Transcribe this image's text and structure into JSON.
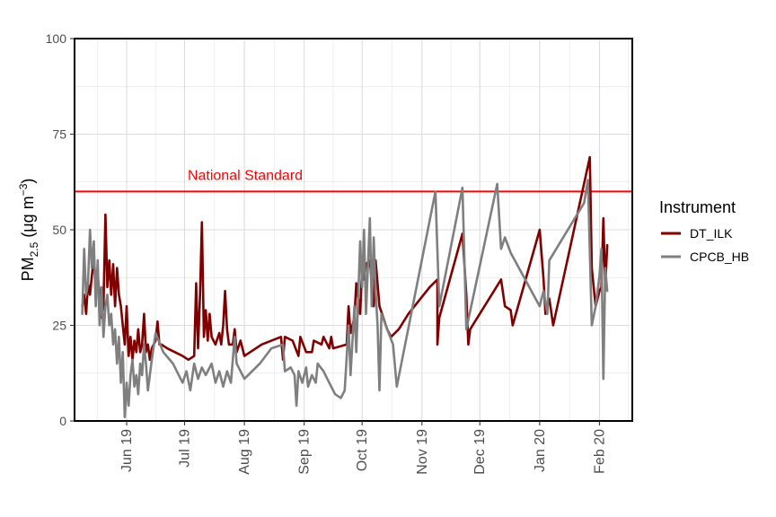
{
  "chart_data": {
    "type": "line",
    "ylabel_main": "PM",
    "ylabel_sub": "2.5",
    "ylabel_units_open": " (μg m",
    "ylabel_units_sup": "−3",
    "ylabel_units_close": ")",
    "ylim": [
      0,
      100
    ],
    "y_ticks": [
      0,
      25,
      50,
      75,
      100
    ],
    "x_range": [
      "2019-05-05",
      "2020-02-18"
    ],
    "x_ticks": [
      {
        "date": "2019-06-01",
        "label": "Jun 19"
      },
      {
        "date": "2019-07-01",
        "label": "Jul 19"
      },
      {
        "date": "2019-08-01",
        "label": "Aug 19"
      },
      {
        "date": "2019-09-01",
        "label": "Sep 19"
      },
      {
        "date": "2019-10-01",
        "label": "Oct 19"
      },
      {
        "date": "2019-11-01",
        "label": "Nov 19"
      },
      {
        "date": "2019-12-01",
        "label": "Dec 19"
      },
      {
        "date": "2020-01-01",
        "label": "Jan 20"
      },
      {
        "date": "2020-02-01",
        "label": "Feb 20"
      }
    ],
    "grid": true,
    "reference_line": {
      "value": 60,
      "label": "National Standard",
      "color": "#ff0000"
    },
    "legend": {
      "title": "Instrument",
      "position": "right"
    },
    "series": [
      {
        "name": "DT_ILK",
        "color": "#800000",
        "points": [
          [
            "2019-05-09",
            30
          ],
          [
            "2019-05-10",
            33
          ],
          [
            "2019-05-11",
            28
          ],
          [
            "2019-05-12",
            36
          ],
          [
            "2019-05-13",
            33
          ],
          [
            "2019-05-14",
            38
          ],
          [
            "2019-05-15",
            43
          ],
          [
            "2019-05-16",
            35
          ],
          [
            "2019-05-17",
            38
          ],
          [
            "2019-05-18",
            33
          ],
          [
            "2019-05-19",
            27
          ],
          [
            "2019-05-20",
            30
          ],
          [
            "2019-05-21",
            54
          ],
          [
            "2019-05-22",
            35
          ],
          [
            "2019-05-23",
            42
          ],
          [
            "2019-05-24",
            33
          ],
          [
            "2019-05-25",
            41
          ],
          [
            "2019-05-26",
            30
          ],
          [
            "2019-05-27",
            40
          ],
          [
            "2019-05-28",
            33
          ],
          [
            "2019-05-29",
            30
          ],
          [
            "2019-05-30",
            25
          ],
          [
            "2019-05-31",
            20
          ],
          [
            "2019-06-01",
            30
          ],
          [
            "2019-06-02",
            17
          ],
          [
            "2019-06-03",
            22
          ],
          [
            "2019-06-04",
            16
          ],
          [
            "2019-06-05",
            21
          ],
          [
            "2019-06-06",
            18
          ],
          [
            "2019-06-07",
            24
          ],
          [
            "2019-06-08",
            18
          ],
          [
            "2019-06-09",
            20
          ],
          [
            "2019-06-10",
            28
          ],
          [
            "2019-06-11",
            18
          ],
          [
            "2019-06-12",
            20
          ],
          [
            "2019-06-13",
            16
          ],
          [
            "2019-06-14",
            19
          ],
          [
            "2019-06-16",
            21
          ],
          [
            "2019-06-17",
            26
          ],
          [
            "2019-06-18",
            20
          ],
          [
            "2019-06-19",
            20
          ],
          [
            "2019-06-22",
            19
          ],
          [
            "2019-06-26",
            18
          ],
          [
            "2019-06-30",
            17
          ],
          [
            "2019-07-03",
            16
          ],
          [
            "2019-07-06",
            17
          ],
          [
            "2019-07-07",
            36
          ],
          [
            "2019-07-08",
            19
          ],
          [
            "2019-07-09",
            33
          ],
          [
            "2019-07-10",
            52
          ],
          [
            "2019-07-11",
            22
          ],
          [
            "2019-07-12",
            29
          ],
          [
            "2019-07-13",
            21
          ],
          [
            "2019-07-14",
            28
          ],
          [
            "2019-07-15",
            22
          ],
          [
            "2019-07-17",
            20
          ],
          [
            "2019-07-19",
            23
          ],
          [
            "2019-07-20",
            20
          ],
          [
            "2019-07-21",
            25
          ],
          [
            "2019-07-22",
            34
          ],
          [
            "2019-07-23",
            24
          ],
          [
            "2019-07-24",
            20
          ],
          [
            "2019-07-26",
            20
          ],
          [
            "2019-07-27",
            24
          ],
          [
            "2019-07-28",
            18
          ],
          [
            "2019-07-30",
            21
          ],
          [
            "2019-08-01",
            17
          ],
          [
            "2019-08-10",
            20
          ],
          [
            "2019-08-20",
            22
          ],
          [
            "2019-08-21",
            16
          ],
          [
            "2019-08-22",
            22
          ],
          [
            "2019-08-26",
            21
          ],
          [
            "2019-08-29",
            17
          ],
          [
            "2019-08-30",
            22
          ],
          [
            "2019-09-02",
            18
          ],
          [
            "2019-09-05",
            18
          ],
          [
            "2019-09-06",
            21
          ],
          [
            "2019-09-10",
            20
          ],
          [
            "2019-09-11",
            22
          ],
          [
            "2019-09-14",
            19
          ],
          [
            "2019-09-15",
            22
          ],
          [
            "2019-09-16",
            19
          ],
          [
            "2019-09-23",
            20
          ],
          [
            "2019-09-24",
            30
          ],
          [
            "2019-09-25",
            23
          ],
          [
            "2019-09-27",
            27
          ],
          [
            "2019-09-28",
            36
          ],
          [
            "2019-09-30",
            28
          ],
          [
            "2019-10-01",
            40
          ],
          [
            "2019-10-02",
            37
          ],
          [
            "2019-10-03",
            41
          ],
          [
            "2019-10-05",
            42
          ],
          [
            "2019-10-07",
            30
          ],
          [
            "2019-10-08",
            42
          ],
          [
            "2019-10-10",
            30
          ],
          [
            "2019-10-12",
            27
          ],
          [
            "2019-10-14",
            24
          ],
          [
            "2019-10-16",
            22
          ],
          [
            "2019-10-20",
            24
          ],
          [
            "2019-10-25",
            28
          ],
          [
            "2019-11-05",
            35
          ],
          [
            "2019-11-09",
            37
          ],
          [
            "2019-11-09",
            20
          ],
          [
            "2019-11-10",
            27
          ],
          [
            "2019-11-22",
            49
          ],
          [
            "2019-11-24",
            33
          ],
          [
            "2019-11-25",
            20
          ],
          [
            "2019-11-26",
            24
          ],
          [
            "2019-12-12",
            37
          ],
          [
            "2019-12-14",
            30
          ],
          [
            "2019-12-17",
            29
          ],
          [
            "2019-12-18",
            25
          ],
          [
            "2020-01-01",
            50
          ],
          [
            "2020-01-03",
            37
          ],
          [
            "2020-01-04",
            28
          ],
          [
            "2020-01-06",
            32
          ],
          [
            "2020-01-08",
            25
          ],
          [
            "2020-01-27",
            69
          ],
          [
            "2020-01-28",
            40
          ],
          [
            "2020-01-29",
            35
          ],
          [
            "2020-01-30",
            30
          ],
          [
            "2020-01-31",
            32
          ],
          [
            "2020-02-01",
            34
          ],
          [
            "2020-02-02",
            35
          ],
          [
            "2020-02-03",
            53
          ],
          [
            "2020-02-04",
            35
          ],
          [
            "2020-02-05",
            46
          ]
        ]
      },
      {
        "name": "CPCB_HB",
        "color": "#7f7f7f",
        "points": [
          [
            "2019-05-09",
            28
          ],
          [
            "2019-05-10",
            45
          ],
          [
            "2019-05-11",
            33
          ],
          [
            "2019-05-12",
            36
          ],
          [
            "2019-05-13",
            50
          ],
          [
            "2019-05-14",
            40
          ],
          [
            "2019-05-15",
            47
          ],
          [
            "2019-05-16",
            30
          ],
          [
            "2019-05-17",
            42
          ],
          [
            "2019-05-18",
            25
          ],
          [
            "2019-05-19",
            35
          ],
          [
            "2019-05-20",
            22
          ],
          [
            "2019-05-21",
            30
          ],
          [
            "2019-05-22",
            33
          ],
          [
            "2019-05-23",
            25
          ],
          [
            "2019-05-24",
            28
          ],
          [
            "2019-05-25",
            20
          ],
          [
            "2019-05-26",
            24
          ],
          [
            "2019-05-27",
            15
          ],
          [
            "2019-05-28",
            22
          ],
          [
            "2019-05-29",
            10
          ],
          [
            "2019-05-30",
            18
          ],
          [
            "2019-05-31",
            1
          ],
          [
            "2019-06-01",
            10
          ],
          [
            "2019-06-02",
            4
          ],
          [
            "2019-06-03",
            12
          ],
          [
            "2019-06-04",
            16
          ],
          [
            "2019-06-05",
            9
          ],
          [
            "2019-06-06",
            12
          ],
          [
            "2019-06-07",
            7
          ],
          [
            "2019-06-08",
            15
          ],
          [
            "2019-06-09",
            12
          ],
          [
            "2019-06-10",
            20
          ],
          [
            "2019-06-11",
            15
          ],
          [
            "2019-06-12",
            8
          ],
          [
            "2019-06-14",
            16
          ],
          [
            "2019-06-16",
            23
          ],
          [
            "2019-06-20",
            18
          ],
          [
            "2019-06-25",
            15
          ],
          [
            "2019-06-30",
            10
          ],
          [
            "2019-07-02",
            13
          ],
          [
            "2019-07-04",
            8
          ],
          [
            "2019-07-06",
            15
          ],
          [
            "2019-07-08",
            11
          ],
          [
            "2019-07-10",
            14
          ],
          [
            "2019-07-12",
            12
          ],
          [
            "2019-07-15",
            15
          ],
          [
            "2019-07-17",
            10
          ],
          [
            "2019-07-19",
            13
          ],
          [
            "2019-07-21",
            9
          ],
          [
            "2019-07-23",
            13
          ],
          [
            "2019-07-25",
            10
          ],
          [
            "2019-07-27",
            22
          ],
          [
            "2019-07-28",
            15
          ],
          [
            "2019-07-30",
            13
          ],
          [
            "2019-08-01",
            11
          ],
          [
            "2019-08-05",
            13
          ],
          [
            "2019-08-09",
            15
          ],
          [
            "2019-08-12",
            17
          ],
          [
            "2019-08-15",
            19
          ],
          [
            "2019-08-21",
            20
          ],
          [
            "2019-08-22",
            13
          ],
          [
            "2019-08-25",
            14
          ],
          [
            "2019-08-27",
            12
          ],
          [
            "2019-08-28",
            4
          ],
          [
            "2019-08-29",
            13
          ],
          [
            "2019-08-31",
            10
          ],
          [
            "2019-09-01",
            12
          ],
          [
            "2019-09-02",
            14
          ],
          [
            "2019-09-03",
            9
          ],
          [
            "2019-09-05",
            12
          ],
          [
            "2019-09-07",
            10
          ],
          [
            "2019-09-08",
            15
          ],
          [
            "2019-09-11",
            13
          ],
          [
            "2019-09-14",
            10
          ],
          [
            "2019-09-17",
            7
          ],
          [
            "2019-09-20",
            6
          ],
          [
            "2019-09-22",
            8
          ],
          [
            "2019-09-24",
            25
          ],
          [
            "2019-09-25",
            12
          ],
          [
            "2019-09-27",
            30
          ],
          [
            "2019-09-28",
            18
          ],
          [
            "2019-09-30",
            47
          ],
          [
            "2019-10-01",
            35
          ],
          [
            "2019-10-02",
            50
          ],
          [
            "2019-10-03",
            28
          ],
          [
            "2019-10-05",
            53
          ],
          [
            "2019-10-06",
            30
          ],
          [
            "2019-10-07",
            48
          ],
          [
            "2019-10-08",
            34
          ],
          [
            "2019-10-09",
            25
          ],
          [
            "2019-10-10",
            8
          ],
          [
            "2019-10-11",
            28
          ],
          [
            "2019-10-14",
            24
          ],
          [
            "2019-10-17",
            20
          ],
          [
            "2019-10-19",
            9
          ],
          [
            "2019-11-08",
            60
          ],
          [
            "2019-11-10",
            30
          ],
          [
            "2019-11-22",
            61
          ],
          [
            "2019-11-24",
            24
          ],
          [
            "2019-12-10",
            62
          ],
          [
            "2019-12-12",
            45
          ],
          [
            "2019-12-14",
            48
          ],
          [
            "2019-12-17",
            44
          ],
          [
            "2020-01-01",
            30
          ],
          [
            "2020-01-03",
            34
          ],
          [
            "2020-01-05",
            28
          ],
          [
            "2020-01-06",
            42
          ],
          [
            "2020-01-24",
            57
          ],
          [
            "2020-01-26",
            63
          ],
          [
            "2020-01-28",
            25
          ],
          [
            "2020-01-30",
            30
          ],
          [
            "2020-02-01",
            38
          ],
          [
            "2020-02-02",
            45
          ],
          [
            "2020-02-03",
            11
          ],
          [
            "2020-02-04",
            40
          ],
          [
            "2020-02-05",
            34
          ]
        ]
      }
    ]
  }
}
